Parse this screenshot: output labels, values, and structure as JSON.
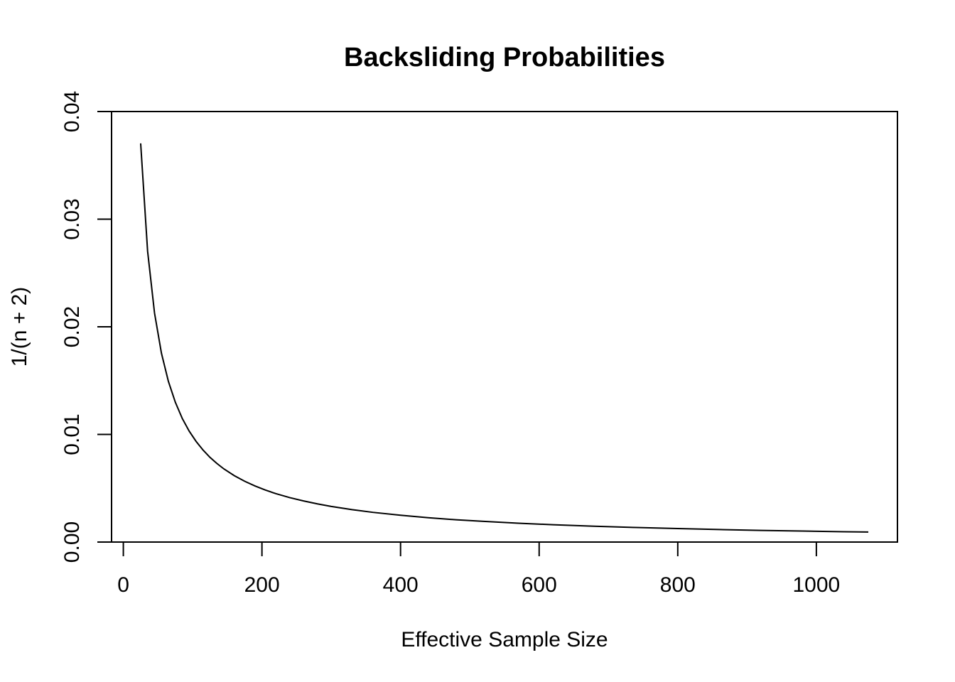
{
  "chart_data": {
    "type": "line",
    "title": "Backsliding Probabilities",
    "xlabel": "Effective Sample Size",
    "ylabel": "1/(n + 2)",
    "xlim": [
      -17,
      1117
    ],
    "ylim": [
      0,
      0.04
    ],
    "xticks": [
      0,
      200,
      400,
      600,
      800,
      1000
    ],
    "xtick_labels": [
      "0",
      "200",
      "400",
      "600",
      "800",
      "1000"
    ],
    "yticks": [
      0,
      0.01,
      0.02,
      0.03,
      0.04
    ],
    "ytick_labels": [
      "0.00",
      "0.01",
      "0.02",
      "0.03",
      "0.04"
    ],
    "grid": false,
    "legend": false,
    "series": [
      {
        "function": "1/(n + 2)",
        "x": [
          25,
          35,
          45,
          55,
          65,
          75,
          85,
          95,
          105,
          115,
          125,
          135,
          145,
          160,
          175,
          190,
          205,
          220,
          240,
          260,
          280,
          300,
          330,
          360,
          400,
          440,
          480,
          520,
          570,
          620,
          680,
          740,
          800,
          860,
          920,
          980,
          1040,
          1075
        ],
        "y": [
          0.03704,
          0.02703,
          0.02128,
          0.01754,
          0.01493,
          0.01299,
          0.01149,
          0.01031,
          0.00935,
          0.00855,
          0.00787,
          0.0073,
          0.0068,
          0.00617,
          0.00565,
          0.00521,
          0.00483,
          0.0045,
          0.00413,
          0.00382,
          0.00355,
          0.00331,
          0.00301,
          0.00276,
          0.00249,
          0.00226,
          0.00207,
          0.00192,
          0.00175,
          0.00161,
          0.00147,
          0.00135,
          0.00125,
          0.00116,
          0.00108,
          0.00102,
          0.00096,
          0.00093
        ]
      }
    ]
  }
}
